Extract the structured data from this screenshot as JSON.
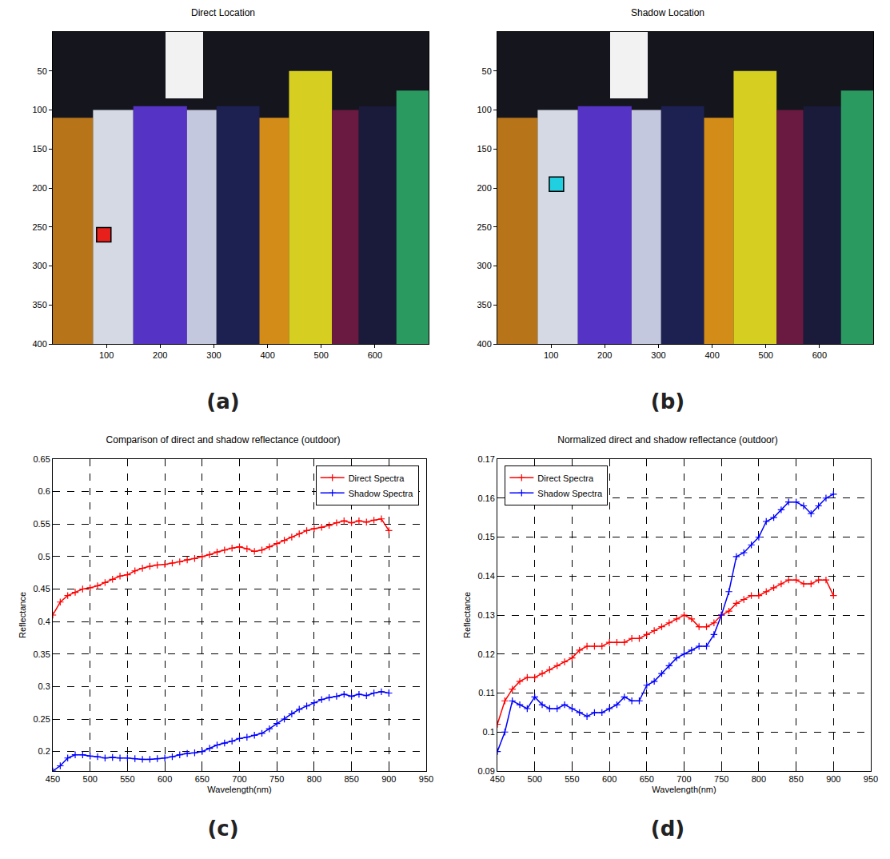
{
  "chart_data": [
    {
      "type": "image",
      "label": "(a)",
      "title": "Direct Location",
      "xlim": [
        0,
        700
      ],
      "ylim": [
        400,
        0
      ],
      "xticks": [
        100,
        200,
        300,
        400,
        500,
        600
      ],
      "yticks": [
        50,
        100,
        150,
        200,
        250,
        300,
        350,
        400
      ],
      "background": "#15151d",
      "regions": [
        {
          "x0": 0,
          "x1": 75,
          "y0": 110,
          "y1": 400,
          "color": "#b87418"
        },
        {
          "x0": 75,
          "x1": 150,
          "y0": 100,
          "y1": 400,
          "color": "#d4d9e4"
        },
        {
          "x0": 150,
          "x1": 250,
          "y0": 95,
          "y1": 400,
          "color": "#5533c4"
        },
        {
          "x0": 210,
          "x1": 280,
          "y0": 0,
          "y1": 85,
          "color": "#f2f2f2"
        },
        {
          "x0": 250,
          "x1": 305,
          "y0": 100,
          "y1": 400,
          "color": "#c4c8de"
        },
        {
          "x0": 305,
          "x1": 385,
          "y0": 95,
          "y1": 400,
          "color": "#1c2152"
        },
        {
          "x0": 385,
          "x1": 440,
          "y0": 110,
          "y1": 400,
          "color": "#d48c18"
        },
        {
          "x0": 440,
          "x1": 520,
          "y0": 50,
          "y1": 400,
          "color": "#d6cf22"
        },
        {
          "x0": 520,
          "x1": 570,
          "y0": 100,
          "y1": 400,
          "color": "#6a1a40"
        },
        {
          "x0": 570,
          "x1": 640,
          "y0": 95,
          "y1": 400,
          "color": "#1a1a3a"
        },
        {
          "x0": 640,
          "x1": 700,
          "y0": 75,
          "y1": 400,
          "color": "#2a9a60"
        }
      ],
      "points": [
        {
          "x": 95,
          "y": 260,
          "color": "#e8201c",
          "marker": "square"
        }
      ]
    },
    {
      "type": "image",
      "label": "(b)",
      "title": "Shadow Location",
      "xlim": [
        0,
        700
      ],
      "ylim": [
        400,
        0
      ],
      "xticks": [
        100,
        200,
        300,
        400,
        500,
        600
      ],
      "yticks": [
        50,
        100,
        150,
        200,
        250,
        300,
        350,
        400
      ],
      "background": "#15151d",
      "regions": [
        {
          "x0": 0,
          "x1": 75,
          "y0": 110,
          "y1": 400,
          "color": "#b87418"
        },
        {
          "x0": 75,
          "x1": 150,
          "y0": 100,
          "y1": 400,
          "color": "#d4d9e4"
        },
        {
          "x0": 150,
          "x1": 250,
          "y0": 95,
          "y1": 400,
          "color": "#5533c4"
        },
        {
          "x0": 210,
          "x1": 280,
          "y0": 0,
          "y1": 85,
          "color": "#f2f2f2"
        },
        {
          "x0": 250,
          "x1": 305,
          "y0": 100,
          "y1": 400,
          "color": "#c4c8de"
        },
        {
          "x0": 305,
          "x1": 385,
          "y0": 95,
          "y1": 400,
          "color": "#1c2152"
        },
        {
          "x0": 385,
          "x1": 440,
          "y0": 110,
          "y1": 400,
          "color": "#d48c18"
        },
        {
          "x0": 440,
          "x1": 520,
          "y0": 50,
          "y1": 400,
          "color": "#d6cf22"
        },
        {
          "x0": 520,
          "x1": 570,
          "y0": 100,
          "y1": 400,
          "color": "#6a1a40"
        },
        {
          "x0": 570,
          "x1": 640,
          "y0": 95,
          "y1": 400,
          "color": "#1a1a3a"
        },
        {
          "x0": 640,
          "x1": 700,
          "y0": 75,
          "y1": 400,
          "color": "#2a9a60"
        }
      ],
      "points": [
        {
          "x": 110,
          "y": 195,
          "color": "#20d0e0",
          "marker": "square"
        }
      ]
    },
    {
      "type": "line",
      "label": "(c)",
      "title": "Comparison of direct and shadow reflectance (outdoor)",
      "x_label": "Wavelength(nm)",
      "y_label": "Reflectance",
      "xlim": [
        450,
        950
      ],
      "ylim": [
        0.17,
        0.65
      ],
      "xticks": [
        450,
        500,
        550,
        600,
        650,
        700,
        750,
        800,
        850,
        900,
        950
      ],
      "yticks": [
        0.2,
        0.25,
        0.3,
        0.35,
        0.4,
        0.45,
        0.5,
        0.55,
        0.6,
        0.65
      ],
      "grid": true,
      "legend": "top right",
      "x": [
        450,
        460,
        470,
        480,
        490,
        500,
        510,
        520,
        530,
        540,
        550,
        560,
        570,
        580,
        590,
        600,
        610,
        620,
        630,
        640,
        650,
        660,
        670,
        680,
        690,
        700,
        710,
        720,
        730,
        740,
        750,
        760,
        770,
        780,
        790,
        800,
        810,
        820,
        830,
        840,
        850,
        860,
        870,
        880,
        890,
        900
      ],
      "series": [
        {
          "name": "Direct Spectra",
          "color": "#ff0000",
          "marker": "cross",
          "values": [
            0.41,
            0.43,
            0.44,
            0.445,
            0.45,
            0.452,
            0.455,
            0.46,
            0.465,
            0.47,
            0.472,
            0.478,
            0.482,
            0.485,
            0.487,
            0.488,
            0.49,
            0.492,
            0.495,
            0.497,
            0.5,
            0.503,
            0.507,
            0.51,
            0.513,
            0.515,
            0.512,
            0.508,
            0.51,
            0.515,
            0.52,
            0.525,
            0.53,
            0.535,
            0.54,
            0.543,
            0.545,
            0.548,
            0.552,
            0.555,
            0.552,
            0.555,
            0.553,
            0.556,
            0.558,
            0.54
          ]
        },
        {
          "name": "Shadow Spectra",
          "color": "#0000ff",
          "marker": "cross",
          "values": [
            0.17,
            0.178,
            0.19,
            0.195,
            0.195,
            0.193,
            0.192,
            0.19,
            0.191,
            0.19,
            0.19,
            0.189,
            0.188,
            0.188,
            0.189,
            0.19,
            0.192,
            0.195,
            0.197,
            0.198,
            0.2,
            0.205,
            0.21,
            0.213,
            0.216,
            0.22,
            0.222,
            0.225,
            0.228,
            0.235,
            0.243,
            0.25,
            0.258,
            0.265,
            0.27,
            0.275,
            0.28,
            0.283,
            0.285,
            0.288,
            0.285,
            0.288,
            0.286,
            0.29,
            0.292,
            0.29
          ]
        }
      ]
    },
    {
      "type": "line",
      "label": "(d)",
      "title": "Normalized direct and shadow reflectance (outdoor)",
      "x_label": "Wavelength(nm)",
      "y_label": "Reflectance",
      "xlim": [
        450,
        950
      ],
      "ylim": [
        0.09,
        0.17
      ],
      "xticks": [
        450,
        500,
        550,
        600,
        650,
        700,
        750,
        800,
        850,
        900,
        950
      ],
      "yticks": [
        0.09,
        0.1,
        0.11,
        0.12,
        0.13,
        0.14,
        0.15,
        0.16,
        0.17
      ],
      "grid": true,
      "legend": "top left",
      "x": [
        450,
        460,
        470,
        480,
        490,
        500,
        510,
        520,
        530,
        540,
        550,
        560,
        570,
        580,
        590,
        600,
        610,
        620,
        630,
        640,
        650,
        660,
        670,
        680,
        690,
        700,
        710,
        720,
        730,
        740,
        750,
        760,
        770,
        780,
        790,
        800,
        810,
        820,
        830,
        840,
        850,
        860,
        870,
        880,
        890,
        900
      ],
      "series": [
        {
          "name": "Direct Spectra",
          "color": "#ff0000",
          "marker": "cross",
          "values": [
            0.102,
            0.108,
            0.111,
            0.113,
            0.114,
            0.114,
            0.115,
            0.116,
            0.117,
            0.118,
            0.119,
            0.121,
            0.122,
            0.122,
            0.122,
            0.123,
            0.123,
            0.123,
            0.124,
            0.124,
            0.125,
            0.126,
            0.127,
            0.128,
            0.129,
            0.13,
            0.129,
            0.127,
            0.127,
            0.128,
            0.13,
            0.131,
            0.133,
            0.134,
            0.135,
            0.135,
            0.136,
            0.137,
            0.138,
            0.139,
            0.139,
            0.138,
            0.138,
            0.139,
            0.139,
            0.135
          ]
        },
        {
          "name": "Shadow Spectra",
          "color": "#0000ff",
          "marker": "cross",
          "values": [
            0.095,
            0.1,
            0.108,
            0.107,
            0.106,
            0.109,
            0.107,
            0.106,
            0.106,
            0.107,
            0.106,
            0.105,
            0.104,
            0.105,
            0.105,
            0.106,
            0.107,
            0.109,
            0.108,
            0.108,
            0.112,
            0.113,
            0.115,
            0.117,
            0.119,
            0.12,
            0.121,
            0.122,
            0.122,
            0.125,
            0.13,
            0.136,
            0.145,
            0.146,
            0.148,
            0.15,
            0.154,
            0.155,
            0.157,
            0.159,
            0.159,
            0.158,
            0.156,
            0.158,
            0.16,
            0.161
          ]
        }
      ]
    }
  ]
}
